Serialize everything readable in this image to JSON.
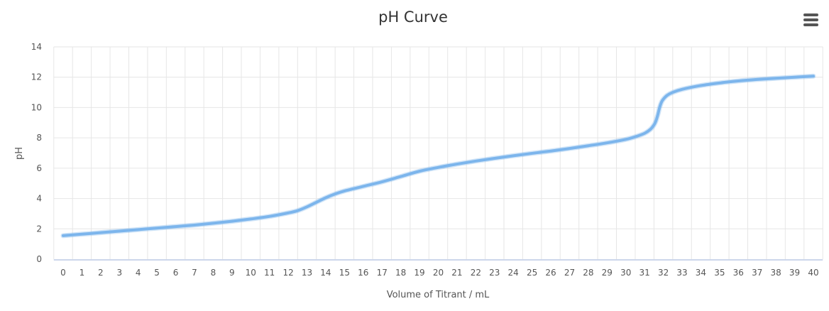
{
  "chart_data": {
    "type": "line",
    "title": "pH Curve",
    "xlabel": "Volume of Titrant / mL",
    "ylabel": "pH",
    "xlim": [
      0,
      40
    ],
    "ylim": [
      0,
      14
    ],
    "x_ticks": [
      0,
      1,
      2,
      3,
      4,
      5,
      6,
      7,
      8,
      9,
      10,
      11,
      12,
      13,
      14,
      15,
      16,
      17,
      18,
      19,
      20,
      21,
      22,
      23,
      24,
      25,
      26,
      27,
      28,
      29,
      30,
      31,
      32,
      33,
      34,
      35,
      36,
      37,
      38,
      39,
      40
    ],
    "y_ticks": [
      0,
      2,
      4,
      6,
      8,
      10,
      12,
      14
    ],
    "grid": true,
    "legend": "none",
    "line_color": "#7cb5ec",
    "series": [
      {
        "x": [
          0,
          1,
          2,
          3,
          4,
          5,
          6,
          7,
          8,
          9,
          10,
          11,
          12,
          12.5,
          13,
          13.5,
          14,
          14.5,
          15,
          16,
          17,
          18,
          19,
          20,
          21,
          22,
          23,
          24,
          25,
          26,
          27,
          28,
          29,
          30,
          30.5,
          31,
          31.3,
          31.5,
          31.6,
          31.7,
          31.8,
          31.9,
          32,
          32.2,
          32.5,
          33,
          34,
          35,
          36,
          37,
          38,
          39,
          40
        ],
        "y": [
          1.55,
          1.65,
          1.75,
          1.85,
          1.95,
          2.05,
          2.15,
          2.25,
          2.37,
          2.5,
          2.65,
          2.82,
          3.05,
          3.2,
          3.45,
          3.75,
          4.05,
          4.3,
          4.5,
          4.8,
          5.1,
          5.45,
          5.8,
          6.05,
          6.27,
          6.47,
          6.65,
          6.82,
          6.98,
          7.13,
          7.3,
          7.48,
          7.67,
          7.9,
          8.07,
          8.3,
          8.55,
          8.85,
          9.1,
          9.5,
          10.0,
          10.35,
          10.55,
          10.8,
          11.0,
          11.2,
          11.45,
          11.62,
          11.75,
          11.85,
          11.93,
          12.0,
          12.07
        ]
      }
    ]
  }
}
